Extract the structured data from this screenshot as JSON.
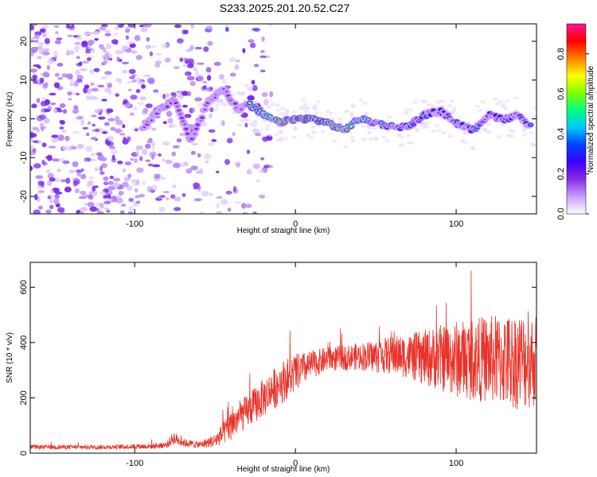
{
  "title": "S233.2025.201.20.52.C27",
  "chart_data": [
    {
      "type": "heatmap",
      "xlabel": "Height of straight line (km)",
      "ylabel": "Frequency (Hz)",
      "xlim": [
        -165,
        150
      ],
      "ylim": [
        -24.5,
        24.5
      ],
      "x_ticks": [
        -100,
        0,
        100
      ],
      "y_ticks": [
        -20,
        -10,
        0,
        10,
        20
      ],
      "colorbar": {
        "label": "Normalized spectral amplitude",
        "range": [
          0,
          0.95
        ],
        "ticks": [
          "0.0",
          "0.2",
          "0.4",
          "0.6",
          "0.8"
        ],
        "colormap": [
          "#ffffff",
          "#c8a0ff",
          "#8a2be2",
          "#3a00ff",
          "#0040ff",
          "#00c8ff",
          "#00ff80",
          "#80ff00",
          "#ffff00",
          "#ff8000",
          "#ff0000",
          "#ff1493"
        ]
      },
      "ridge": {
        "x": [
          -95,
          -85,
          -75,
          -65,
          -55,
          -45,
          -35,
          -30,
          -20,
          -10,
          0,
          10,
          20,
          30,
          40,
          50,
          60,
          70,
          80,
          90,
          100,
          110,
          120,
          130,
          140,
          145
        ],
        "y": [
          -2,
          2,
          5,
          -6,
          4,
          8,
          2,
          4,
          1,
          -1,
          0,
          0,
          -1,
          -3,
          0,
          -1,
          -2,
          -2,
          1,
          2,
          -1,
          -3,
          1,
          0,
          1,
          -2
        ]
      }
    },
    {
      "type": "line",
      "xlabel": "Height of straight line (km)",
      "ylabel": "SNR (10 * v/v)",
      "xlim": [
        -165,
        150
      ],
      "ylim": [
        0,
        690
      ],
      "x_ticks": [
        -100,
        0,
        100
      ],
      "y_ticks": [
        0,
        200,
        400,
        600
      ],
      "color": "#e8332a",
      "envelope": {
        "x": [
          -165,
          -120,
          -90,
          -80,
          -76,
          -70,
          -60,
          -50,
          -45,
          -40,
          -35,
          -30,
          -20,
          -10,
          0,
          10,
          20,
          30,
          40,
          50,
          60,
          70,
          80,
          90,
          100,
          110,
          120,
          130,
          140,
          150
        ],
        "mean": [
          22,
          22,
          25,
          30,
          55,
          38,
          30,
          45,
          70,
          100,
          130,
          150,
          200,
          250,
          290,
          320,
          340,
          345,
          350,
          350,
          355,
          350,
          345,
          345,
          340,
          340,
          340,
          335,
          335,
          335
        ],
        "spread": [
          8,
          8,
          10,
          12,
          25,
          15,
          12,
          25,
          40,
          55,
          60,
          60,
          70,
          80,
          70,
          50,
          45,
          45,
          50,
          60,
          70,
          80,
          100,
          120,
          140,
          150,
          160,
          170,
          180,
          170
        ]
      }
    }
  ]
}
